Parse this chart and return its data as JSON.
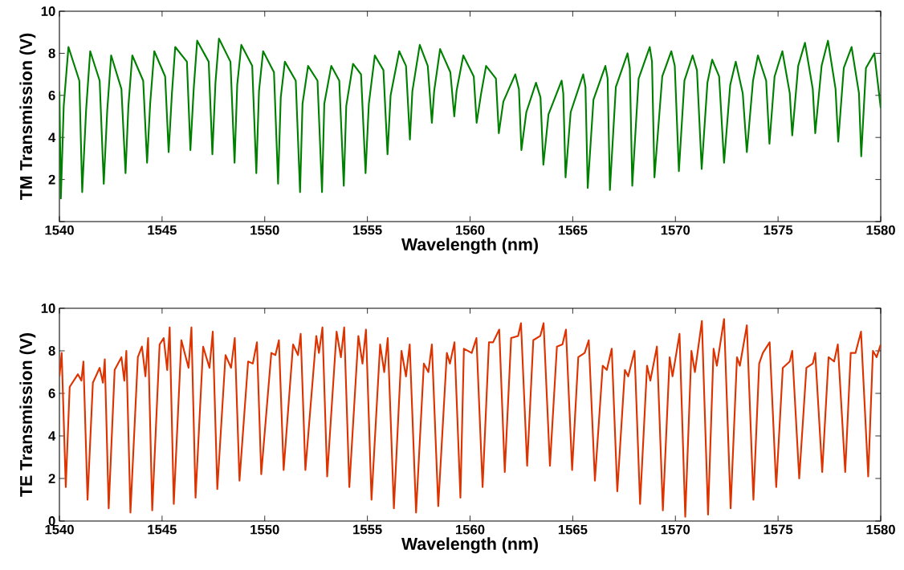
{
  "chart_data": [
    {
      "type": "line",
      "xlabel": "Wavelength (nm)",
      "ylabel": "TM Transmission (V)",
      "xlim": [
        1540,
        1580
      ],
      "ylim": [
        0,
        10
      ],
      "xticks": [
        1540,
        1545,
        1550,
        1555,
        1560,
        1565,
        1570,
        1575,
        1580
      ],
      "yticks": [
        {
          "value": 0,
          "label": null
        },
        2,
        4,
        6,
        8,
        10
      ],
      "series": [
        {
          "color": "#008000",
          "x": [
            1540,
            1540.07,
            1540.21,
            1540.44,
            1540.97,
            1541.11,
            1541.3,
            1541.5,
            1541.96,
            1542.16,
            1542.33,
            1542.52,
            1543.02,
            1543.22,
            1543.36,
            1543.55,
            1544.08,
            1544.27,
            1544.42,
            1544.62,
            1545.15,
            1545.32,
            1545.48,
            1545.64,
            1546.21,
            1546.38,
            1546.54,
            1546.71,
            1547.27,
            1547.45,
            1547.6,
            1547.77,
            1548.33,
            1548.53,
            1548.66,
            1548.86,
            1549.39,
            1549.59,
            1549.72,
            1549.92,
            1550.45,
            1550.65,
            1550.78,
            1550.98,
            1551.51,
            1551.72,
            1551.84,
            1552.11,
            1552.57,
            1552.79,
            1552.9,
            1553.24,
            1553.63,
            1553.85,
            1553.97,
            1554.3,
            1554.69,
            1554.91,
            1555.07,
            1555.36,
            1555.78,
            1555.98,
            1556.13,
            1556.55,
            1556.88,
            1557.07,
            1557.19,
            1557.55,
            1557.94,
            1558.14,
            1558.25,
            1558.54,
            1559.04,
            1559.23,
            1559.34,
            1559.67,
            1560.18,
            1560.32,
            1560.54,
            1560.78,
            1561.26,
            1561.4,
            1561.62,
            1562.2,
            1562.38,
            1562.5,
            1562.74,
            1563.21,
            1563.43,
            1563.57,
            1563.82,
            1564.46,
            1564.54,
            1564.65,
            1564.9,
            1565.51,
            1565.62,
            1565.73,
            1566.01,
            1566.59,
            1566.7,
            1566.81,
            1567.1,
            1567.67,
            1567.78,
            1567.9,
            1568.21,
            1568.75,
            1568.86,
            1568.98,
            1569.36,
            1569.8,
            1569.97,
            1570.17,
            1570.44,
            1570.84,
            1571.05,
            1571.28,
            1571.56,
            1571.79,
            1572.13,
            1572.37,
            1572.67,
            1572.94,
            1573.28,
            1573.48,
            1573.78,
            1574.02,
            1574.42,
            1574.58,
            1574.83,
            1575.21,
            1575.57,
            1575.69,
            1575.98,
            1576.31,
            1576.69,
            1576.81,
            1577.12,
            1577.43,
            1577.8,
            1577.93,
            1578.2,
            1578.58,
            1578.94,
            1579.05,
            1579.28,
            1579.69,
            1580
          ],
          "values": [
            6.2,
            1.1,
            5.5,
            8.3,
            6.7,
            1.4,
            5.3,
            8.1,
            6.7,
            1.8,
            5.3,
            7.9,
            6.3,
            2.3,
            5.5,
            7.9,
            6.7,
            2.8,
            5.6,
            8.1,
            6.9,
            3.3,
            6.1,
            8.3,
            7.6,
            3.4,
            6.3,
            8.6,
            7.6,
            3.2,
            6.6,
            8.7,
            7.6,
            2.8,
            6.5,
            8.4,
            7.4,
            2.3,
            6.2,
            8.1,
            7.1,
            1.8,
            5.9,
            7.6,
            6.7,
            1.4,
            5.6,
            7.4,
            6.7,
            1.4,
            5.6,
            7.4,
            6.7,
            1.7,
            5.5,
            7.5,
            7.0,
            2.3,
            5.6,
            7.9,
            7.2,
            3.2,
            6.0,
            8.1,
            7.4,
            3.9,
            6.2,
            8.4,
            7.4,
            4.7,
            6.2,
            8.2,
            7.1,
            5.0,
            6.2,
            7.9,
            6.9,
            4.7,
            6.1,
            7.4,
            6.8,
            4.2,
            5.7,
            7.0,
            6.3,
            3.4,
            5.2,
            6.6,
            5.9,
            2.7,
            5.1,
            6.7,
            6.1,
            2.1,
            5.2,
            7.0,
            6.4,
            1.6,
            5.8,
            7.4,
            6.8,
            1.5,
            6.4,
            8.0,
            7.3,
            1.7,
            6.8,
            8.3,
            7.6,
            2.1,
            6.9,
            8.1,
            7.4,
            2.4,
            6.7,
            7.9,
            7.2,
            2.5,
            6.6,
            7.7,
            6.9,
            2.8,
            6.5,
            7.6,
            6.1,
            3.3,
            6.7,
            7.9,
            6.7,
            3.7,
            6.9,
            8.1,
            6.1,
            4.1,
            7.4,
            8.5,
            6.3,
            4.2,
            7.4,
            8.6,
            6.3,
            3.8,
            7.3,
            8.3,
            6.1,
            3.1,
            7.3,
            8.0,
            5.4
          ]
        }
      ]
    },
    {
      "type": "line",
      "xlabel": "Wavelength (nm)",
      "ylabel": "TE Transmission (V)",
      "xlim": [
        1540,
        1580
      ],
      "ylim": [
        0,
        10
      ],
      "xticks": [
        1540,
        1545,
        1550,
        1555,
        1560,
        1565,
        1570,
        1575,
        1580
      ],
      "yticks": [
        0,
        2,
        4,
        6,
        8,
        10
      ],
      "series": [
        {
          "color": "#dd3300",
          "x": [
            1540,
            1540.11,
            1540.31,
            1540.5,
            1540.9,
            1541.07,
            1541.17,
            1541.37,
            1541.63,
            1541.96,
            1542.12,
            1542.21,
            1542.4,
            1542.69,
            1543.02,
            1543.16,
            1543.26,
            1543.46,
            1543.82,
            1544.02,
            1544.19,
            1544.32,
            1544.52,
            1544.88,
            1545.08,
            1545.25,
            1545.37,
            1545.57,
            1545.94,
            1546.29,
            1546.43,
            1546.63,
            1547.0,
            1547.31,
            1547.47,
            1547.69,
            1548.09,
            1548.36,
            1548.54,
            1548.77,
            1549.19,
            1549.42,
            1549.62,
            1549.83,
            1550.32,
            1550.52,
            1550.69,
            1550.92,
            1551.38,
            1551.62,
            1551.75,
            1551.98,
            1552.51,
            1552.64,
            1552.81,
            1553.04,
            1553.5,
            1553.71,
            1553.87,
            1554.12,
            1554.56,
            1554.76,
            1554.93,
            1555.2,
            1555.62,
            1555.82,
            1555.99,
            1556.29,
            1556.66,
            1556.88,
            1557.06,
            1557.37,
            1557.75,
            1557.97,
            1558.14,
            1558.45,
            1558.87,
            1559.02,
            1559.24,
            1559.53,
            1559.7,
            1560.08,
            1560.31,
            1560.61,
            1560.92,
            1561.12,
            1561.42,
            1561.69,
            1562.0,
            1562.34,
            1562.48,
            1562.78,
            1563.08,
            1563.42,
            1563.58,
            1563.89,
            1564.23,
            1564.5,
            1564.67,
            1564.97,
            1565.27,
            1565.58,
            1565.78,
            1566.08,
            1566.46,
            1566.66,
            1566.9,
            1567.17,
            1567.54,
            1567.7,
            1568.01,
            1568.28,
            1568.62,
            1568.78,
            1569.1,
            1569.39,
            1569.72,
            1569.86,
            1570.2,
            1570.48,
            1570.78,
            1570.95,
            1571.29,
            1571.59,
            1571.86,
            1572.02,
            1572.37,
            1572.69,
            1573.0,
            1573.14,
            1573.48,
            1573.8,
            1574.08,
            1574.26,
            1574.59,
            1574.91,
            1575.23,
            1575.57,
            1575.69,
            1576.03,
            1576.38,
            1576.69,
            1576.81,
            1577.15,
            1577.46,
            1577.73,
            1577.91,
            1578.27,
            1578.54,
            1578.77,
            1579.04,
            1579.39,
            1579.62,
            1579.8,
            1580
          ],
          "values": [
            6.8,
            7.9,
            1.6,
            6.3,
            6.9,
            6.6,
            7.5,
            1.0,
            6.5,
            7.2,
            6.5,
            7.6,
            0.6,
            7.1,
            7.7,
            6.6,
            8.0,
            0.4,
            7.7,
            8.2,
            6.8,
            8.6,
            0.5,
            8.3,
            8.6,
            7.1,
            9.1,
            0.8,
            8.5,
            7.2,
            9.1,
            1.1,
            8.2,
            7.2,
            8.9,
            1.5,
            7.8,
            7.2,
            8.6,
            1.9,
            7.5,
            7.4,
            8.4,
            2.2,
            7.9,
            7.8,
            8.5,
            2.4,
            8.3,
            7.8,
            8.8,
            2.4,
            8.7,
            7.9,
            9.1,
            2.1,
            8.9,
            7.7,
            9.1,
            1.6,
            8.7,
            7.4,
            9.0,
            1.0,
            8.3,
            7.0,
            8.6,
            0.6,
            8.0,
            6.8,
            8.3,
            0.4,
            7.4,
            7.0,
            8.3,
            0.7,
            7.9,
            7.4,
            8.4,
            1.1,
            8.1,
            7.9,
            8.6,
            1.6,
            8.4,
            8.4,
            9.0,
            2.3,
            8.6,
            8.7,
            9.3,
            2.6,
            8.5,
            8.7,
            9.3,
            2.6,
            8.2,
            8.3,
            9.0,
            2.4,
            7.7,
            7.9,
            8.5,
            1.9,
            7.3,
            7.1,
            8.1,
            1.4,
            7.1,
            6.8,
            8.0,
            0.8,
            7.3,
            6.6,
            8.2,
            0.5,
            7.7,
            6.8,
            8.8,
            0.2,
            8.0,
            7.0,
            9.4,
            0.3,
            8.1,
            7.3,
            9.5,
            0.6,
            7.7,
            7.3,
            9.2,
            1.0,
            7.4,
            7.9,
            8.4,
            1.6,
            7.2,
            7.5,
            8.0,
            2.0,
            7.2,
            7.4,
            7.9,
            2.3,
            7.7,
            7.5,
            8.3,
            2.3,
            7.9,
            7.9,
            8.9,
            2.1,
            8.0,
            7.7,
            8.3
          ]
        }
      ]
    }
  ]
}
